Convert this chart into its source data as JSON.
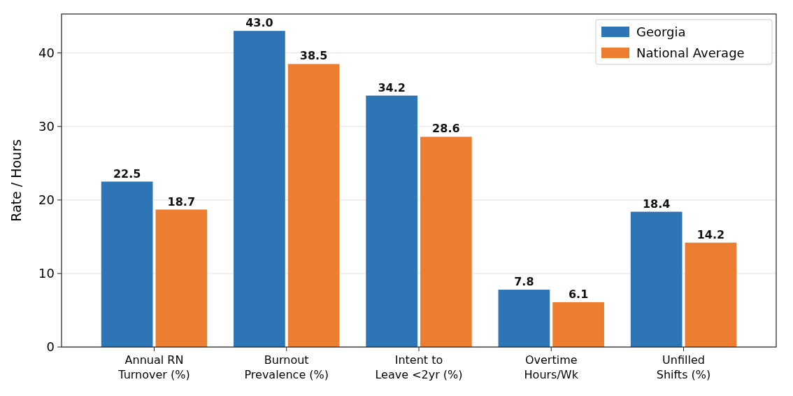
{
  "chart_data": {
    "type": "bar",
    "ylabel": "Rate / Hours",
    "categories": [
      "Annual RN\nTurnover (%)",
      "Burnout\nPrevalence (%)",
      "Intent to\nLeave <2yr (%)",
      "Overtime\nHours/Wk",
      "Unfilled\nShifts (%)"
    ],
    "series": [
      {
        "name": "Georgia",
        "color": "#2e75b6",
        "values": [
          22.5,
          43.0,
          34.2,
          7.8,
          18.4
        ],
        "value_labels": [
          "22.5",
          "43.0",
          "34.2",
          "7.8",
          "18.4"
        ]
      },
      {
        "name": "National Average",
        "color": "#ed7d31",
        "values": [
          18.7,
          38.5,
          28.6,
          6.1,
          14.2
        ],
        "value_labels": [
          "18.7",
          "38.5",
          "28.6",
          "6.1",
          "14.2"
        ]
      }
    ],
    "ylim": [
      0,
      45.3
    ],
    "yticks": [
      0,
      10,
      20,
      30,
      40
    ],
    "grid": "y",
    "legend": "top right"
  }
}
